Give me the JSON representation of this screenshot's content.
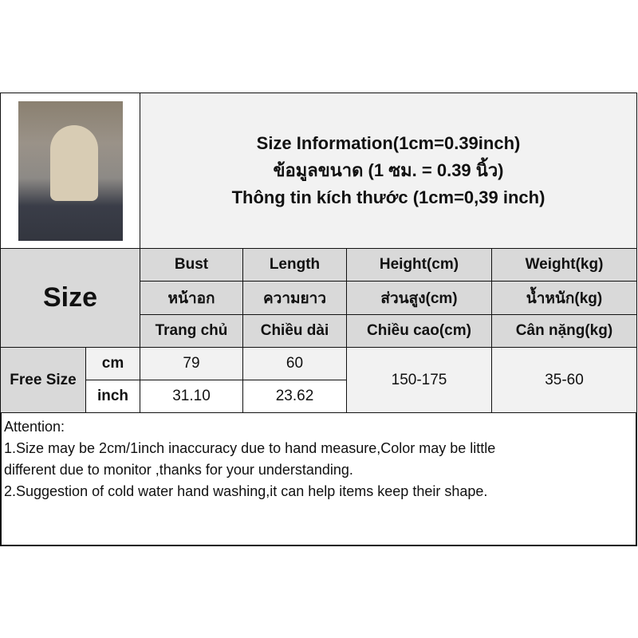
{
  "title": {
    "line1": "Size Information(1cm=0.39inch)",
    "line2": "ข้อมูลขนาด (1 ซม. = 0.39 นิ้ว)",
    "line3": "Thông tin kích thước (1cm=0,39 inch)"
  },
  "header": {
    "size": "Size",
    "columns": [
      {
        "en": "Bust",
        "th": "หน้าอก",
        "vi": "Trang chủ"
      },
      {
        "en": "Length",
        "th": "ความยาว",
        "vi": "Chiều dài"
      },
      {
        "en": "Height(cm)",
        "th": "ส่วนสูง(cm)",
        "vi": "Chiều cao(cm)"
      },
      {
        "en": "Weight(kg)",
        "th": "น้ำหนัก(kg)",
        "vi": "Cân nặng(kg)"
      }
    ]
  },
  "rows": {
    "size_name": "Free Size",
    "cm": {
      "unit": "cm",
      "bust": "79",
      "length": "60"
    },
    "inch": {
      "unit": "inch",
      "bust": "31.10",
      "length": "23.62"
    },
    "height": "150-175",
    "weight": "35-60"
  },
  "attention": {
    "title": "Attention:",
    "line1": "1.Size may be 2cm/1inch inaccuracy due to hand measure,Color may be little",
    "line2": "different due to monitor ,thanks for your understanding.",
    "line3": "2.Suggestion of cold water hand washing,it can help items keep their shape."
  }
}
